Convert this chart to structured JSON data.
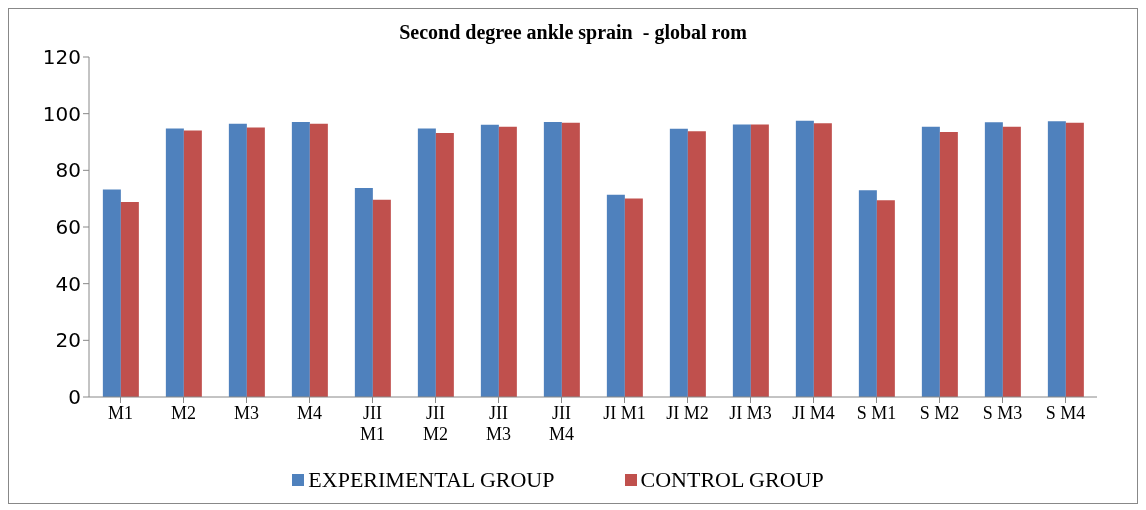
{
  "chart_data": {
    "type": "bar",
    "title": "Second degree ankle sprain  - global rom",
    "categories": [
      "M1",
      "M2",
      "M3",
      "M4",
      "JII M1",
      "JII M2",
      "JII M3",
      "JII M4",
      "JI M1",
      "JI M2",
      "JI M3",
      "JI M4",
      "S M1",
      "S M2",
      "S M3",
      "S M4"
    ],
    "series": [
      {
        "name": "EXPERIMENTAL GROUP",
        "color": "#4f81bd",
        "values": [
          73.2,
          94.8,
          96.4,
          97.1,
          73.8,
          94.8,
          96.1,
          97.1,
          71.4,
          94.7,
          96.2,
          97.5,
          73.0,
          95.4,
          97.0,
          97.3
        ]
      },
      {
        "name": "CONTROL GROUP",
        "color": "#c0504d",
        "values": [
          68.8,
          94.1,
          95.1,
          96.4,
          69.6,
          93.2,
          95.4,
          96.8,
          70.1,
          93.8,
          96.2,
          96.6,
          69.4,
          93.5,
          95.4,
          96.8
        ]
      }
    ],
    "ylim": [
      0,
      120
    ],
    "yticks": [
      0,
      20,
      40,
      60,
      80,
      100,
      120
    ],
    "grid": false,
    "legend": "bottom"
  }
}
